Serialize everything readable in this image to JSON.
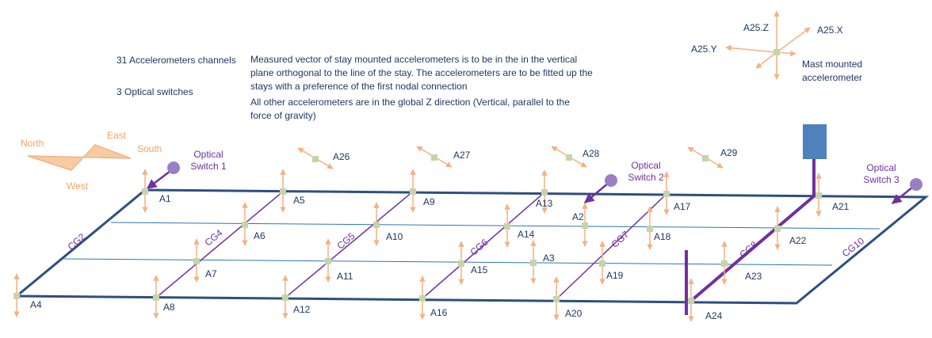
{
  "notes": {
    "channels": "31 Accelerometers channels",
    "switches": "3 Optical switches",
    "stay_note": "Measured vector of stay mounted accelerometers is to be in the in the vertical plane orthogonal to the line of the stay. The accelerometers are to be fitted up the stays with a preference of the first nodal connection",
    "global_note": "All other accelerometers are in the global Z direction (Vertical, parallel to the force of gravity)"
  },
  "compass": {
    "north": "North",
    "east": "East",
    "south": "South",
    "west": "West"
  },
  "mast": {
    "z": "A25.Z",
    "x": "A25.X",
    "y": "A25.Y",
    "caption": "Mast mounted accelerometer"
  },
  "optical_switches": [
    "Optical Switch 1",
    "Optical Switch 2",
    "Optical Switch 3"
  ],
  "sensors": [
    "A1",
    "A5",
    "A9",
    "A13",
    "A17",
    "A21",
    "A2",
    "A6",
    "A10",
    "A14",
    "A18",
    "A22",
    "A7",
    "A11",
    "A3",
    "A15",
    "A19",
    "A23",
    "A4",
    "A8",
    "A12",
    "A16",
    "A20",
    "A24",
    "A26",
    "A27",
    "A28",
    "A29"
  ],
  "cables": [
    "CG2",
    "CG4",
    "CG5",
    "CG6",
    "CG7",
    "CG8",
    "CG10"
  ]
}
